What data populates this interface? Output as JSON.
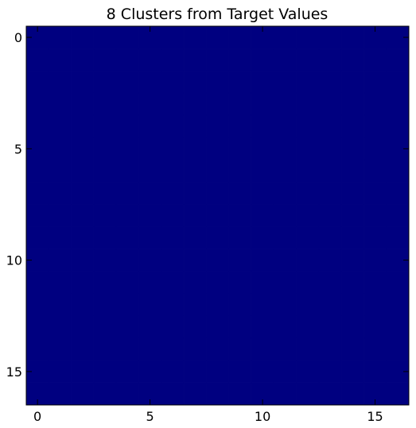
{
  "chart_data": {
    "type": "heatmap",
    "title": "8 Clusters from Target Values",
    "xlabel": "",
    "ylabel": "",
    "grid": false,
    "colormap": "jet",
    "fill_color": "#000080",
    "rows": 17,
    "cols": 17,
    "value": 0,
    "xlim": [
      -0.5,
      16.5
    ],
    "ylim": [
      16.5,
      -0.5
    ],
    "x_ticks": [
      0,
      5,
      10,
      15
    ],
    "y_ticks": [
      0,
      5,
      10,
      15
    ],
    "x_tick_labels": [
      "0",
      "5",
      "10",
      "15"
    ],
    "y_tick_labels": [
      "0",
      "5",
      "10",
      "15"
    ]
  }
}
